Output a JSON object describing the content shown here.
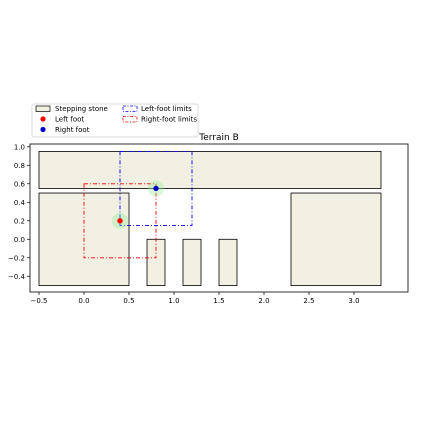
{
  "chart_data": {
    "type": "scatter",
    "title": "Terrain B",
    "xlabel": "",
    "ylabel": "",
    "xlim": [
      -0.6,
      3.6
    ],
    "ylim": [
      -0.57,
      1.03
    ],
    "x_ticks": [
      -0.5,
      0.0,
      0.5,
      1.0,
      1.5,
      2.0,
      2.5,
      3.0
    ],
    "x_tick_labels": [
      "−0.5",
      "0.0",
      "0.5",
      "1.0",
      "1.5",
      "2.0",
      "2.5",
      "3.0"
    ],
    "y_ticks": [
      -0.4,
      -0.2,
      0.0,
      0.2,
      0.4,
      0.6,
      0.8,
      1.0
    ],
    "y_tick_labels": [
      "−0.4",
      "−0.2",
      "0.0",
      "0.2",
      "0.4",
      "0.6",
      "0.8",
      "1.0"
    ],
    "grid": false,
    "legend_position": "upper-left-outside",
    "legend": [
      {
        "key": "stones",
        "label": "Stepping stone"
      },
      {
        "key": "left_foot",
        "label": "Left foot"
      },
      {
        "key": "right_foot",
        "label": "Right foot"
      },
      {
        "key": "left_limits",
        "label": "Left-foot limits"
      },
      {
        "key": "right_limits",
        "label": "Right-foot limits"
      }
    ],
    "stepping_stones": [
      {
        "x0": -0.5,
        "x1": 3.3,
        "y0": 0.55,
        "y1": 0.95
      },
      {
        "x0": -0.5,
        "x1": 0.5,
        "y0": -0.5,
        "y1": 0.5
      },
      {
        "x0": 0.7,
        "x1": 0.9,
        "y0": -0.5,
        "y1": 0.0
      },
      {
        "x0": 1.1,
        "x1": 1.3,
        "y0": -0.5,
        "y1": 0.0
      },
      {
        "x0": 1.5,
        "x1": 1.7,
        "y0": -0.5,
        "y1": 0.0
      },
      {
        "x0": 2.3,
        "x1": 3.3,
        "y0": -0.5,
        "y1": 0.5
      }
    ],
    "left_foot": {
      "x": 0.4,
      "y": 0.2
    },
    "right_foot": {
      "x": 0.8,
      "y": 0.55
    },
    "left_foot_limits": {
      "x0": 0.4,
      "x1": 1.2,
      "y0": 0.15,
      "y1": 0.95
    },
    "right_foot_limits": {
      "x0": 0.0,
      "x1": 0.8,
      "y0": -0.2,
      "y1": 0.6
    },
    "colors": {
      "stone_fill": "#f1f0e3",
      "stone_edge": "#000000",
      "left_foot": "#ff0000",
      "right_foot": "#0000cc",
      "left_limits": "#0000ff",
      "right_limits": "#ff0000",
      "halo": "#90ee90"
    }
  }
}
